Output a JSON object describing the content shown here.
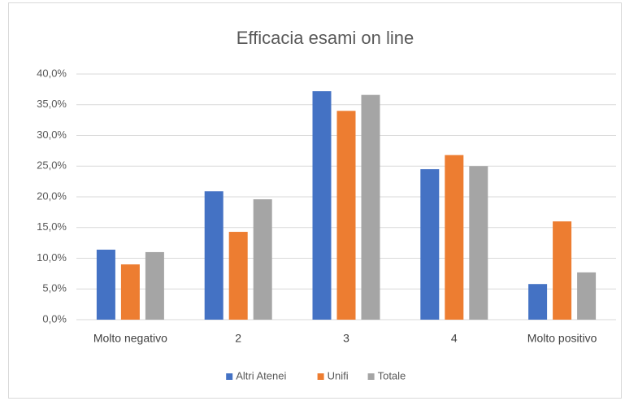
{
  "chart_data": {
    "type": "bar",
    "title": "Efficacia esami on line",
    "categories": [
      "Molto negativo",
      "2",
      "3",
      "4",
      "Molto positivo"
    ],
    "series": [
      {
        "name": "Altri Atenei",
        "color": "#4472c4",
        "values": [
          11.4,
          20.9,
          37.2,
          24.5,
          5.8
        ]
      },
      {
        "name": "Unifi",
        "color": "#ed7d31",
        "values": [
          9.0,
          14.3,
          34.0,
          26.8,
          16.0
        ]
      },
      {
        "name": "Totale",
        "color": "#a5a5a5",
        "values": [
          11.0,
          19.6,
          36.6,
          25.0,
          7.7
        ]
      }
    ],
    "ylim": [
      0,
      40
    ],
    "yticks": [
      {
        "value": 0,
        "label": "0,0%"
      },
      {
        "value": 5,
        "label": "5,0%"
      },
      {
        "value": 10,
        "label": "10,0%"
      },
      {
        "value": 15,
        "label": "15,0%"
      },
      {
        "value": 20,
        "label": "20,0%"
      },
      {
        "value": 25,
        "label": "25,0%"
      },
      {
        "value": 30,
        "label": "30,0%"
      },
      {
        "value": 35,
        "label": "35,0%"
      },
      {
        "value": 40,
        "label": "40,0%"
      }
    ],
    "grid": true,
    "legend": "bottom"
  }
}
